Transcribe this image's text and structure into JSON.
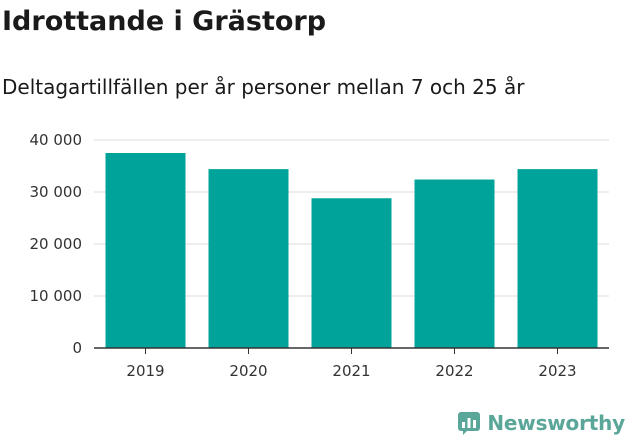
{
  "colors": {
    "bar": "#00a39a",
    "grid": "#dddddd",
    "axis": "#333333",
    "brand": "#5aa79a"
  },
  "brand": {
    "name": "Newsworthy",
    "icon": "newsworthy-logo-icon"
  },
  "chart_data": {
    "type": "bar",
    "title": "Idrottande i Grästorp",
    "subtitle": "Deltagartillfällen per år personer mellan 7 och 25 år",
    "xlabel": "",
    "ylabel": "",
    "categories": [
      "2019",
      "2020",
      "2021",
      "2022",
      "2023"
    ],
    "values": [
      37500,
      34400,
      28800,
      32400,
      34400
    ],
    "ylim": [
      0,
      40000
    ],
    "yticks": [
      0,
      10000,
      20000,
      30000,
      40000
    ],
    "ytick_labels": [
      "0",
      "10 000",
      "20 000",
      "30 000",
      "40 000"
    ],
    "grid": true,
    "legend": "none"
  }
}
